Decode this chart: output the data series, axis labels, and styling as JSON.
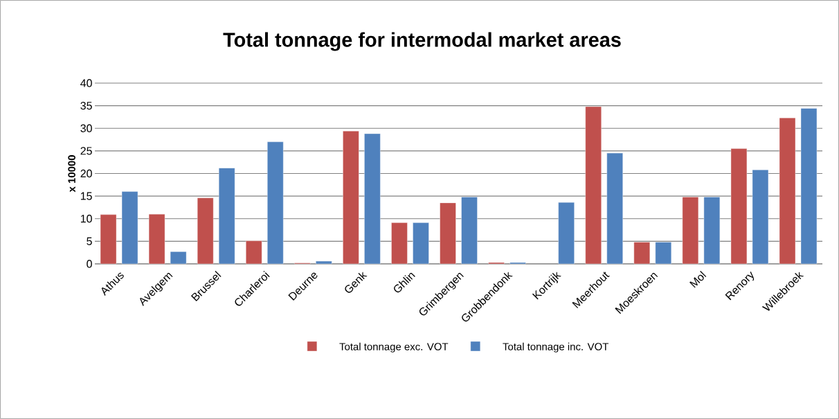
{
  "chart_data": {
    "type": "bar",
    "title": "Total tonnage for intermodal market areas",
    "ylabel": "x 10000",
    "categories": [
      "Athus",
      "Avelgem",
      "Brussel",
      "Charleroi",
      "Deurne",
      "Genk",
      "Ghlin",
      "Grimbergen",
      "Grobbendonk",
      "Kortrijk",
      "Meerhout",
      "Moeskroen",
      "Mol",
      "Renory",
      "Willebroek"
    ],
    "series": [
      {
        "name": "Total tonnage exc. VOT",
        "color": "#c0504d",
        "values": [
          10.9,
          11.0,
          14.6,
          5.1,
          0.2,
          29.4,
          9.1,
          13.5,
          0.3,
          null,
          34.8,
          4.8,
          14.8,
          25.5,
          32.3
        ]
      },
      {
        "name": "Total tonnage inc. VOT",
        "color": "#4f81bd",
        "values": [
          16.0,
          2.7,
          21.2,
          27.0,
          0.6,
          28.8,
          9.1,
          14.8,
          0.3,
          13.6,
          24.5,
          4.8,
          14.8,
          20.8,
          34.4
        ]
      }
    ],
    "ylim": [
      0,
      40
    ],
    "yticks": [
      0,
      5,
      10,
      15,
      20,
      25,
      30,
      35,
      40
    ],
    "grid": "y",
    "legend": "bottom"
  }
}
